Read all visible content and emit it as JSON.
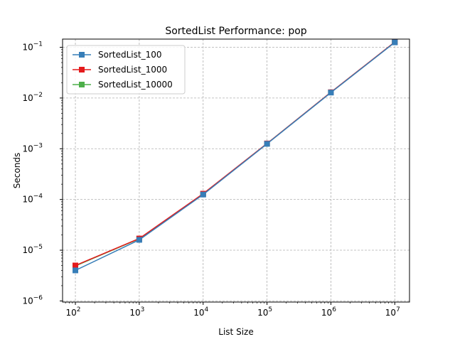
{
  "chart_data": {
    "type": "line",
    "title": "SortedList Performance: pop",
    "xlabel": "List Size",
    "ylabel": "Seconds",
    "xscale": "log",
    "yscale": "log",
    "xlim": [
      63,
      17000000
    ],
    "ylim": [
      9.5e-07,
      0.145
    ],
    "grid": true,
    "legend": "top-left",
    "x": [
      100,
      1000,
      10000,
      100000,
      1000000,
      10000000
    ],
    "x_tick_labels": [
      {
        "base": "10",
        "exp": "2",
        "value": 100
      },
      {
        "base": "10",
        "exp": "3",
        "value": 1000
      },
      {
        "base": "10",
        "exp": "4",
        "value": 10000
      },
      {
        "base": "10",
        "exp": "5",
        "value": 100000
      },
      {
        "base": "10",
        "exp": "6",
        "value": 1000000
      },
      {
        "base": "10",
        "exp": "7",
        "value": 10000000
      }
    ],
    "y_tick_labels": [
      {
        "base": "10",
        "exp": "−6",
        "value": 1e-06
      },
      {
        "base": "10",
        "exp": "−5",
        "value": 1e-05
      },
      {
        "base": "10",
        "exp": "−4",
        "value": 0.0001
      },
      {
        "base": "10",
        "exp": "−3",
        "value": 0.001
      },
      {
        "base": "10",
        "exp": "−2",
        "value": 0.01
      },
      {
        "base": "10",
        "exp": "−1",
        "value": 0.1
      }
    ],
    "series": [
      {
        "name": "SortedList_100",
        "color": "#377eb8",
        "marker": "square",
        "values": [
          4e-06,
          1.6e-05,
          0.000125,
          0.00125,
          0.0128,
          0.125
        ]
      },
      {
        "name": "SortedList_1000",
        "color": "#e41a1c",
        "marker": "square",
        "values": [
          5e-06,
          1.7e-05,
          0.00013,
          0.00127,
          0.013,
          0.127
        ]
      },
      {
        "name": "SortedList_10000",
        "color": "#4daf4a",
        "marker": "square",
        "values": [
          4.9e-06,
          1.68e-05,
          0.000128,
          0.00126,
          0.0129,
          0.126
        ]
      }
    ]
  }
}
